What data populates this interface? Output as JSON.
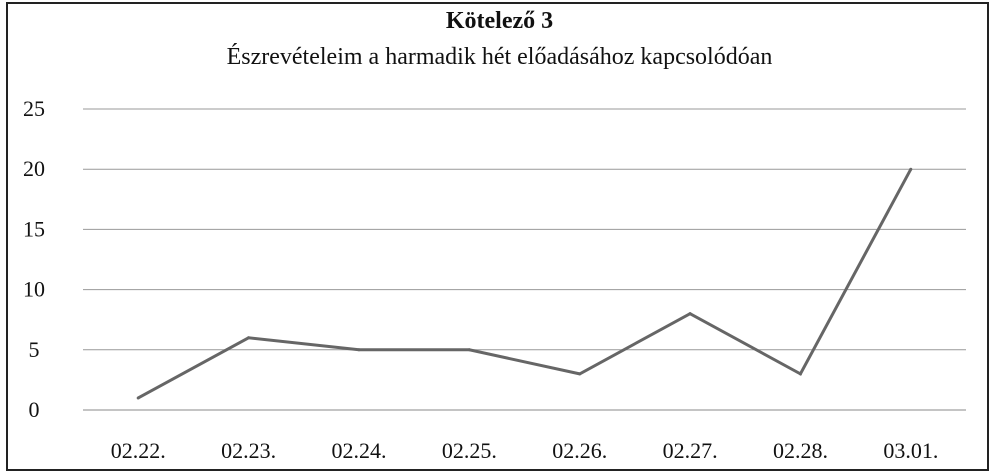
{
  "chart_data": {
    "type": "line",
    "title": "Kötelező 3",
    "subtitle": "Észrevételeim a harmadik hét előadásához kapcsolódóan",
    "categories": [
      "02.22.",
      "02.23.",
      "02.24.",
      "02.25.",
      "02.26.",
      "02.27.",
      "02.28.",
      "03.01."
    ],
    "series": [
      {
        "values": [
          1,
          6,
          5,
          5,
          3,
          8,
          3,
          20
        ]
      }
    ],
    "ylim": [
      0,
      25
    ],
    "yticks": [
      "0",
      "5",
      "10",
      "15",
      "20",
      "25"
    ],
    "grid": true,
    "line_color": "#666666"
  }
}
